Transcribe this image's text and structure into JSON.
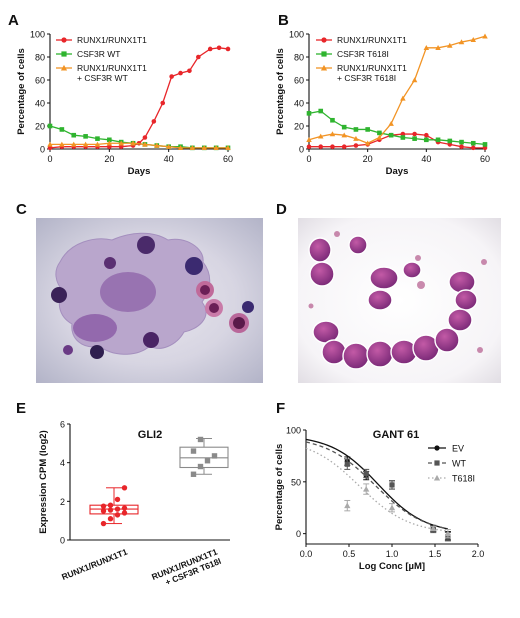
{
  "panel_labels": {
    "a": "A",
    "b": "B",
    "c": "C",
    "d": "D",
    "e": "E",
    "f": "F"
  },
  "image_panels": [
    {
      "panel": "C",
      "description": "microscopy-image"
    },
    {
      "panel": "D",
      "description": "microscopy-image"
    }
  ],
  "chart_data": [
    {
      "id": "A",
      "type": "line",
      "xlabel": "Days",
      "ylabel": "Percentage of cells",
      "xlim": [
        0,
        60
      ],
      "ylim": [
        0,
        100
      ],
      "xticks": [
        "0",
        "20",
        "40",
        "60"
      ],
      "yticks": [
        "0",
        "20",
        "40",
        "60",
        "80",
        "100"
      ],
      "legend_placement": "top-left",
      "series": [
        {
          "name": "RUNX1/RUNX1T1",
          "color": "#e8262a",
          "marker": "circle",
          "x": [
            0,
            4,
            8,
            12,
            16,
            20,
            24,
            28,
            30,
            32,
            35,
            38,
            41,
            44,
            47,
            50,
            54,
            57,
            60
          ],
          "y": [
            1,
            2,
            2,
            2,
            2,
            2,
            2,
            3,
            5,
            10,
            24,
            40,
            63,
            66,
            68,
            80,
            87,
            88,
            87
          ]
        },
        {
          "name": "CSF3R WT",
          "color": "#2fb42f",
          "marker": "square",
          "x": [
            0,
            4,
            8,
            12,
            16,
            20,
            24,
            28,
            32,
            36,
            40,
            44,
            48,
            52,
            56,
            60
          ],
          "y": [
            20,
            17,
            12,
            11,
            9,
            8,
            6,
            5,
            4,
            3,
            2,
            2,
            1,
            1,
            1,
            1
          ]
        },
        {
          "name": "RUNX1/RUNX1T1 + CSF3R WT",
          "color": "#f29425",
          "marker": "triangle",
          "x": [
            0,
            4,
            8,
            12,
            16,
            20,
            24,
            28,
            32,
            36,
            40,
            44,
            48,
            52,
            56,
            60
          ],
          "y": [
            4,
            4,
            4,
            4,
            4,
            5,
            5,
            5,
            4,
            3,
            2,
            1,
            1,
            1,
            1,
            1
          ]
        }
      ]
    },
    {
      "id": "B",
      "type": "line",
      "xlabel": "Days",
      "ylabel": "Percentage of cells",
      "xlim": [
        0,
        60
      ],
      "ylim": [
        0,
        100
      ],
      "xticks": [
        "0",
        "20",
        "40",
        "60"
      ],
      "yticks": [
        "0",
        "20",
        "40",
        "60",
        "80",
        "100"
      ],
      "legend_placement": "top-left",
      "series": [
        {
          "name": "RUNX1/RUNX1T1",
          "color": "#e8262a",
          "marker": "circle",
          "x": [
            0,
            4,
            8,
            12,
            16,
            20,
            24,
            28,
            32,
            36,
            40,
            44,
            48,
            52,
            56,
            60
          ],
          "y": [
            2,
            2,
            2,
            2,
            3,
            4,
            8,
            12,
            13,
            13,
            12,
            6,
            4,
            2,
            1,
            1
          ]
        },
        {
          "name": "CSF3R T618I",
          "color": "#2fb42f",
          "marker": "square",
          "x": [
            0,
            4,
            8,
            12,
            16,
            20,
            24,
            28,
            32,
            36,
            40,
            44,
            48,
            52,
            56,
            60
          ],
          "y": [
            31,
            33,
            25,
            19,
            17,
            17,
            14,
            12,
            10,
            9,
            8,
            8,
            7,
            6,
            5,
            4
          ]
        },
        {
          "name": "RUNX1/RUNX1T1 + CSF3R T618I",
          "color": "#f29425",
          "marker": "triangle",
          "x": [
            0,
            4,
            8,
            12,
            16,
            20,
            24,
            28,
            32,
            36,
            40,
            44,
            48,
            52,
            56,
            60
          ],
          "y": [
            8,
            11,
            13,
            12,
            9,
            5,
            10,
            22,
            44,
            60,
            88,
            88,
            90,
            93,
            95,
            98
          ]
        }
      ]
    },
    {
      "id": "E",
      "type": "box",
      "title": "GLI2",
      "ylabel": "Expression CPM (log2)",
      "ylim": [
        0,
        6
      ],
      "yticks": [
        "0",
        "2",
        "4",
        "6"
      ],
      "categories": [
        "RUNX1/RUNX1T1",
        "RUNX1/RUNX1T1 + CSF3R T618I"
      ],
      "series": [
        {
          "name": "RUNX1/RUNX1T1",
          "color": "#e8262a",
          "marker": "circle",
          "min": 0.85,
          "q1": 1.35,
          "median": 1.6,
          "q3": 1.8,
          "max": 2.7,
          "points": [
            0.85,
            1.1,
            1.3,
            1.4,
            1.5,
            1.55,
            1.6,
            1.65,
            1.75,
            1.8,
            2.1,
            2.7
          ]
        },
        {
          "name": "RUNX1/RUNX1T1 + CSF3R T618I",
          "color": "#8a8a8a",
          "marker": "square",
          "min": 3.4,
          "q1": 3.75,
          "median": 4.25,
          "q3": 4.8,
          "max": 5.25,
          "points": [
            3.4,
            3.8,
            4.1,
            4.35,
            4.6,
            5.2
          ]
        }
      ]
    },
    {
      "id": "F",
      "type": "line",
      "title": "GANT 61",
      "xlabel": "Log Conc [µM]",
      "ylabel": "Percentage of cells",
      "xlim": [
        0.0,
        2.0
      ],
      "ylim": [
        -10,
        100
      ],
      "xticks": [
        "0.0",
        "0.5",
        "1.0",
        "1.5",
        "2.0"
      ],
      "yticks": [
        "0",
        "50",
        "100"
      ],
      "legend_placement": "top-right",
      "series": [
        {
          "name": "EV",
          "color": "#111111",
          "marker": "circle",
          "line": "solid",
          "x": [
            0.48,
            0.7,
            1.0,
            1.48,
            1.65
          ],
          "y": [
            70,
            56,
            47,
            5,
            -2
          ],
          "err": [
            4,
            4,
            4,
            3,
            4
          ],
          "fit": {
            "top": 95,
            "bottom": 0,
            "logic50": 0.84,
            "hill": 1.6
          }
        },
        {
          "name": "WT",
          "color": "#555555",
          "marker": "square",
          "line": "dashed",
          "x": [
            0.48,
            0.7,
            1.0,
            1.48,
            1.65
          ],
          "y": [
            67,
            58,
            47,
            4,
            -3
          ],
          "err": [
            5,
            4,
            4,
            3,
            4
          ],
          "fit": {
            "top": 94,
            "bottom": 0,
            "logic50": 0.8,
            "hill": 1.5
          }
        },
        {
          "name": "T618I",
          "color": "#aaaaaa",
          "marker": "triangle",
          "line": "dotted",
          "x": [
            0.48,
            0.7,
            1.0,
            1.48,
            1.65
          ],
          "y": [
            27,
            43,
            25,
            5,
            0
          ],
          "err": [
            5,
            5,
            4,
            2,
            4
          ],
          "fit": {
            "top": 92,
            "bottom": 0,
            "logic50": 0.62,
            "hill": 1.5
          }
        }
      ]
    }
  ]
}
